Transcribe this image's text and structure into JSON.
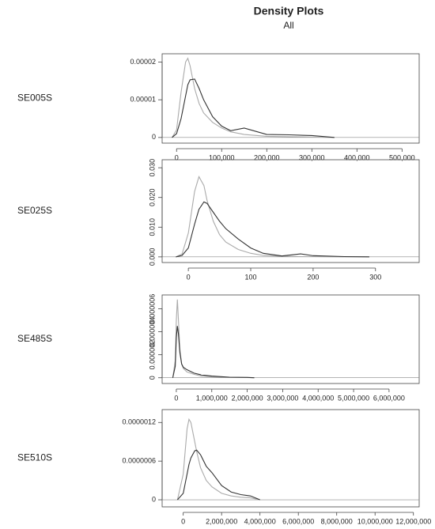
{
  "title": "Density Plots",
  "subtitle": "All",
  "chart_data": [
    {
      "type": "line",
      "label": "SE005S",
      "x": [
        -10000,
        0,
        10000,
        20000,
        25000,
        30000,
        40000,
        50000,
        60000,
        80000,
        100000,
        120000,
        150000,
        200000,
        250000,
        300000,
        350000
      ],
      "series": [
        {
          "color": "#aaaaaa",
          "values": [
            0,
            2e-06,
            1.2e-05,
            2e-05,
            2.1e-05,
            1.9e-05,
            1.3e-05,
            9e-06,
            6.5e-06,
            4e-06,
            2.5e-06,
            1.5e-06,
            8e-07,
            3e-07,
            2e-07,
            1e-07,
            0
          ]
        },
        {
          "color": "#333333",
          "values": [
            0,
            1e-06,
            5e-06,
            1.1e-05,
            1.4e-05,
            1.53e-05,
            1.55e-05,
            1.3e-05,
            1e-05,
            5.5e-06,
            3e-06,
            1.8e-06,
            2.5e-06,
            8e-07,
            7e-07,
            5e-07,
            0
          ]
        }
      ],
      "xlim": [
        -32000,
        538000
      ],
      "ylim": [
        -1.5e-06,
        2.22e-05
      ],
      "xticks": [
        0,
        {
          "value": 100000,
          "label": "100,000"
        },
        {
          "value": 200000,
          "label": "200,000"
        },
        {
          "value": 300000,
          "label": "300,000"
        },
        {
          "value": 400000,
          "label": "400,000"
        },
        {
          "value": 500000,
          "label": "500,000"
        }
      ],
      "yticks": [
        0,
        {
          "value": 1e-05,
          "label": "0.00001"
        },
        {
          "value": 2e-05,
          "label": "0.00002"
        }
      ]
    },
    {
      "type": "line",
      "label": "SE025S",
      "x": [
        -20,
        -10,
        0,
        10,
        17,
        25,
        30,
        40,
        50,
        60,
        80,
        100,
        120,
        150,
        180,
        200,
        250,
        290
      ],
      "series": [
        {
          "color": "#aaaaaa",
          "values": [
            0,
            0.001,
            0.008,
            0.022,
            0.027,
            0.024,
            0.019,
            0.012,
            0.0075,
            0.005,
            0.0025,
            0.0012,
            0.0005,
            0.0002,
            0.0001,
            0.0001,
            0,
            0
          ]
        },
        {
          "color": "#333333",
          "values": [
            0,
            0.0005,
            0.003,
            0.011,
            0.016,
            0.0185,
            0.018,
            0.015,
            0.012,
            0.0095,
            0.006,
            0.003,
            0.0012,
            0.0003,
            0.001,
            0.0004,
            0.0001,
            0
          ]
        }
      ],
      "xlim": [
        -42,
        370
      ],
      "ylim": [
        -0.0019,
        0.0327
      ],
      "xticks": [
        0,
        100,
        200,
        300
      ],
      "yticks": [
        {
          "value": 0,
          "label": "0.000"
        },
        {
          "value": 0.01,
          "label": "0.010"
        },
        {
          "value": 0.02,
          "label": "0.020"
        },
        {
          "value": 0.03,
          "label": "0.030"
        }
      ]
    },
    {
      "type": "line",
      "label": "SE485S",
      "x": [
        -100000,
        -30000,
        0,
        30000,
        60000,
        100000,
        150000,
        200000,
        300000,
        500000,
        700000,
        1000000,
        1500000,
        2000000,
        2200000
      ],
      "series": [
        {
          "color": "#aaaaaa",
          "values": [
            0,
            1.5e-06,
            5e-06,
            6.8e-06,
            5e-06,
            2.5e-06,
            1.2e-06,
            8e-07,
            5e-07,
            3e-07,
            1.5e-07,
            8e-08,
            3e-08,
            2e-08,
            0
          ]
        },
        {
          "color": "#333333",
          "values": [
            0,
            1e-06,
            3.5e-06,
            4.5e-06,
            3.8e-06,
            2.2e-06,
            1.2e-06,
            9e-07,
            7e-07,
            4e-07,
            2.5e-07,
            1.5e-07,
            5e-08,
            3e-08,
            0
          ]
        }
      ],
      "xlim": [
        -400000,
        6850000
      ],
      "ylim": [
        -5e-07,
        7.2e-06
      ],
      "xticks": [
        0,
        {
          "value": 1000000,
          "label": "1,000,000"
        },
        {
          "value": 2000000,
          "label": "2,000,000"
        },
        {
          "value": 3000000,
          "label": "3,000,000"
        },
        {
          "value": 4000000,
          "label": "4,000,000"
        },
        {
          "value": 5000000,
          "label": "5,000,000"
        },
        {
          "value": 6000000,
          "label": "6,000,000"
        }
      ],
      "yticks": [
        0,
        {
          "value": 2e-06,
          "label": "0.000002"
        },
        {
          "value": 4e-06,
          "label": "0.000004"
        },
        {
          "value": 6e-06,
          "label": "0.000006"
        }
      ]
    },
    {
      "type": "line",
      "label": "SE510S",
      "x": [
        -300000,
        0,
        200000,
        300000,
        400000,
        600000,
        700000,
        900000,
        1200000,
        1500000,
        2000000,
        2500000,
        3000000,
        3500000,
        4000000
      ],
      "series": [
        {
          "color": "#aaaaaa",
          "values": [
            0,
            4e-07,
            1.1e-06,
            1.25e-06,
            1.2e-06,
            9e-07,
            7.5e-07,
            5e-07,
            3e-07,
            2e-07,
            1e-07,
            6e-08,
            4e-08,
            3e-08,
            0
          ]
        },
        {
          "color": "#333333",
          "values": [
            0,
            1e-07,
            4e-07,
            5.5e-07,
            6.5e-07,
            7.6e-07,
            7.7e-07,
            7e-07,
            5.2e-07,
            4.2e-07,
            2.2e-07,
            1.2e-07,
            8e-08,
            6e-08,
            0
          ]
        }
      ],
      "xlim": [
        -1100000,
        12300000
      ],
      "ylim": [
        -1.1e-07,
        1.4e-06
      ],
      "xticks": [
        0,
        {
          "value": 2000000,
          "label": "2,000,000"
        },
        {
          "value": 4000000,
          "label": "4,000,000"
        },
        {
          "value": 6000000,
          "label": "6,000,000"
        },
        {
          "value": 8000000,
          "label": "8,000,000"
        },
        {
          "value": 10000000,
          "label": "10,000,000"
        },
        {
          "value": 12000000,
          "label": "12,000,000"
        }
      ],
      "yticks": [
        0,
        {
          "value": 6e-07,
          "label": "0.0000006"
        },
        {
          "value": 1.2e-06,
          "label": "0.0000012"
        }
      ]
    }
  ]
}
